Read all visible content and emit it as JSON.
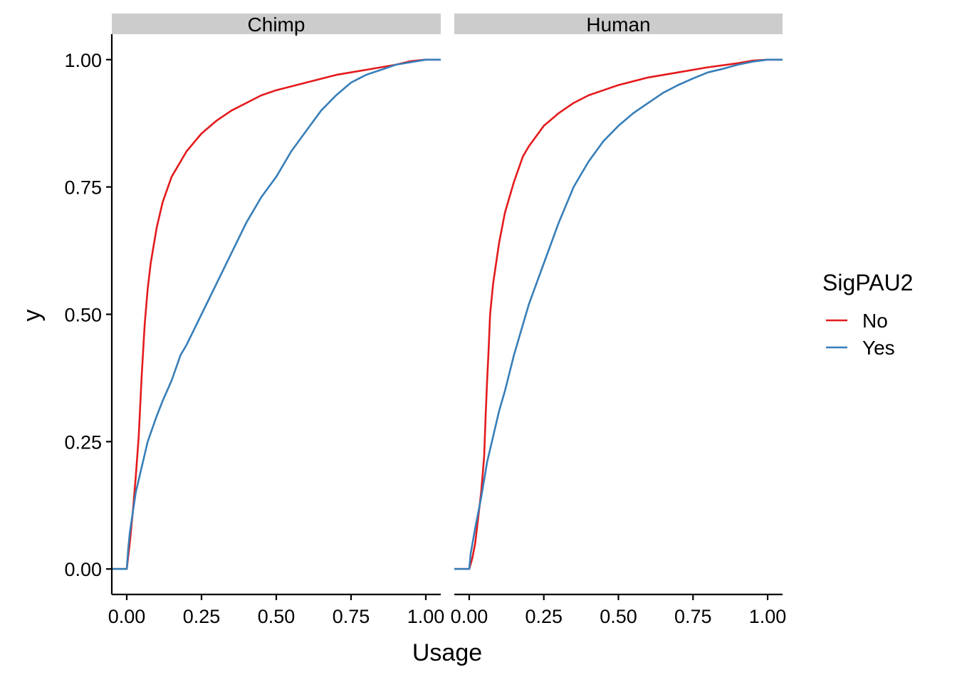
{
  "chart_data": {
    "type": "line",
    "subtype": "ecdf",
    "xlabel": "Usage",
    "ylabel": "y",
    "xlim": [
      -0.05,
      1.05
    ],
    "ylim": [
      -0.05,
      1.05
    ],
    "x_ticks": [
      0,
      0.25,
      0.5,
      0.75,
      1
    ],
    "x_tick_labels": [
      "0.00",
      "0.25",
      "0.50",
      "0.75",
      "1.00"
    ],
    "y_ticks": [
      0,
      0.25,
      0.5,
      0.75,
      1
    ],
    "y_tick_labels": [
      "0.00",
      "0.25",
      "0.50",
      "0.75",
      "1.00"
    ],
    "grid": false,
    "legend": {
      "title": "SigPAU2",
      "position": "right",
      "entries": [
        {
          "label": "No",
          "color": "#E41A1C"
        },
        {
          "label": "Yes",
          "color": "#377EB8"
        }
      ]
    },
    "facets": [
      {
        "strip": "Chimp",
        "series": [
          {
            "name": "No",
            "color": "#E41A1C",
            "x": [
              -0.05,
              0,
              0.01,
              0.02,
              0.03,
              0.04,
              0.05,
              0.06,
              0.07,
              0.08,
              0.1,
              0.12,
              0.15,
              0.18,
              0.2,
              0.25,
              0.3,
              0.35,
              0.4,
              0.45,
              0.5,
              0.6,
              0.7,
              0.8,
              0.9,
              0.95,
              1.0,
              1.05
            ],
            "y": [
              0,
              0,
              0.05,
              0.11,
              0.18,
              0.26,
              0.38,
              0.48,
              0.55,
              0.6,
              0.67,
              0.72,
              0.77,
              0.8,
              0.82,
              0.855,
              0.88,
              0.9,
              0.915,
              0.93,
              0.94,
              0.955,
              0.97,
              0.98,
              0.99,
              0.997,
              1.0,
              1.0
            ]
          },
          {
            "name": "Yes",
            "color": "#377EB8",
            "x": [
              -0.05,
              0,
              0.005,
              0.01,
              0.02,
              0.03,
              0.05,
              0.07,
              0.1,
              0.12,
              0.15,
              0.18,
              0.2,
              0.25,
              0.3,
              0.35,
              0.4,
              0.45,
              0.5,
              0.55,
              0.6,
              0.65,
              0.7,
              0.75,
              0.8,
              0.85,
              0.9,
              0.95,
              1.0,
              1.05
            ],
            "y": [
              0,
              0,
              0.04,
              0.07,
              0.11,
              0.15,
              0.2,
              0.25,
              0.3,
              0.33,
              0.37,
              0.42,
              0.44,
              0.5,
              0.56,
              0.62,
              0.68,
              0.73,
              0.77,
              0.82,
              0.86,
              0.9,
              0.93,
              0.955,
              0.97,
              0.98,
              0.99,
              0.995,
              1.0,
              1.0
            ]
          }
        ]
      },
      {
        "strip": "Human",
        "series": [
          {
            "name": "No",
            "color": "#E41A1C",
            "x": [
              -0.05,
              0,
              0.01,
              0.02,
              0.03,
              0.04,
              0.05,
              0.055,
              0.06,
              0.065,
              0.07,
              0.08,
              0.1,
              0.12,
              0.15,
              0.18,
              0.2,
              0.25,
              0.3,
              0.35,
              0.4,
              0.45,
              0.5,
              0.6,
              0.7,
              0.8,
              0.9,
              0.95,
              1.0,
              1.05
            ],
            "y": [
              0,
              0,
              0.02,
              0.05,
              0.1,
              0.15,
              0.22,
              0.3,
              0.37,
              0.43,
              0.5,
              0.56,
              0.64,
              0.7,
              0.76,
              0.81,
              0.83,
              0.87,
              0.895,
              0.915,
              0.93,
              0.94,
              0.95,
              0.965,
              0.975,
              0.985,
              0.993,
              0.998,
              1.0,
              1.0
            ]
          },
          {
            "name": "Yes",
            "color": "#377EB8",
            "x": [
              -0.05,
              0,
              0.005,
              0.02,
              0.04,
              0.06,
              0.08,
              0.1,
              0.12,
              0.15,
              0.18,
              0.2,
              0.25,
              0.3,
              0.35,
              0.4,
              0.45,
              0.5,
              0.55,
              0.6,
              0.65,
              0.7,
              0.75,
              0.8,
              0.85,
              0.9,
              0.95,
              1.0,
              1.05
            ],
            "y": [
              0,
              0,
              0.03,
              0.08,
              0.14,
              0.21,
              0.26,
              0.31,
              0.35,
              0.42,
              0.48,
              0.52,
              0.6,
              0.68,
              0.75,
              0.8,
              0.84,
              0.87,
              0.895,
              0.915,
              0.935,
              0.95,
              0.963,
              0.975,
              0.982,
              0.99,
              0.996,
              1.0,
              1.0
            ]
          }
        ]
      }
    ]
  }
}
